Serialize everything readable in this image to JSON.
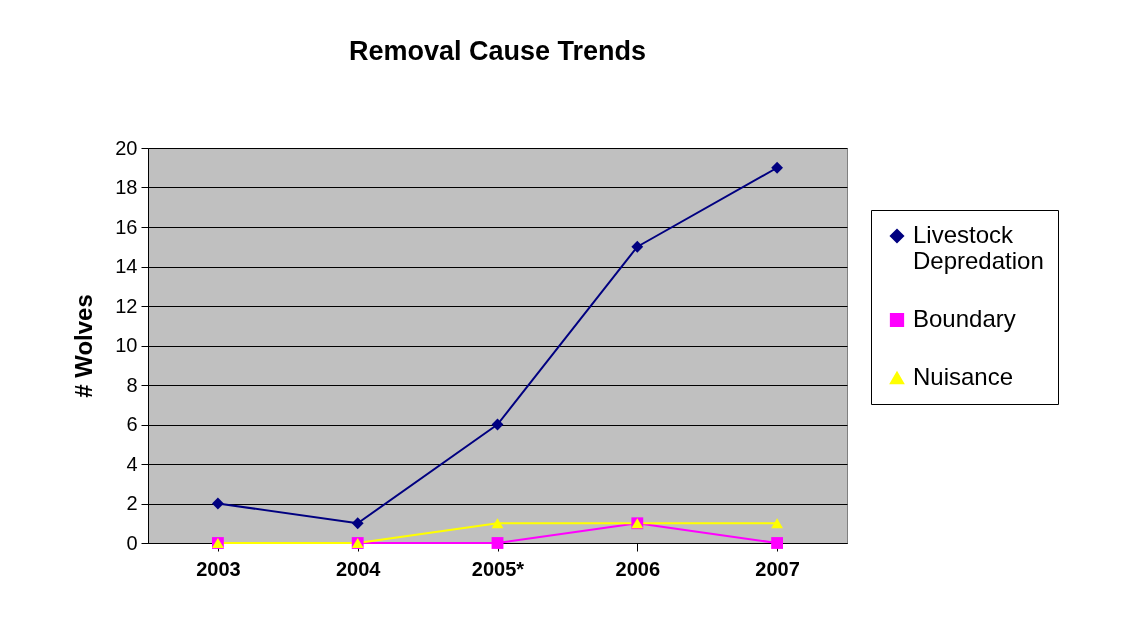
{
  "chart_data": {
    "type": "line",
    "title": "Removal Cause Trends",
    "ylabel": "# Wolves",
    "categories": [
      "2003",
      "2004",
      "2005*",
      "2006",
      "2007"
    ],
    "series": [
      {
        "name": "Livestock Depredation",
        "color": "#000080",
        "marker": "diamond",
        "values": [
          2,
          1,
          6,
          15,
          19
        ]
      },
      {
        "name": "Boundary",
        "color": "#ff00ff",
        "marker": "square",
        "values": [
          0,
          0,
          0,
          1,
          0
        ]
      },
      {
        "name": "Nuisance",
        "color": "#ffff00",
        "marker": "triangle",
        "values": [
          0,
          0,
          1,
          1,
          1
        ]
      }
    ],
    "ylim": [
      0,
      20
    ],
    "yticks": [
      0,
      2,
      4,
      6,
      8,
      10,
      12,
      14,
      16,
      18,
      20
    ],
    "grid": "y",
    "legend": "right"
  }
}
